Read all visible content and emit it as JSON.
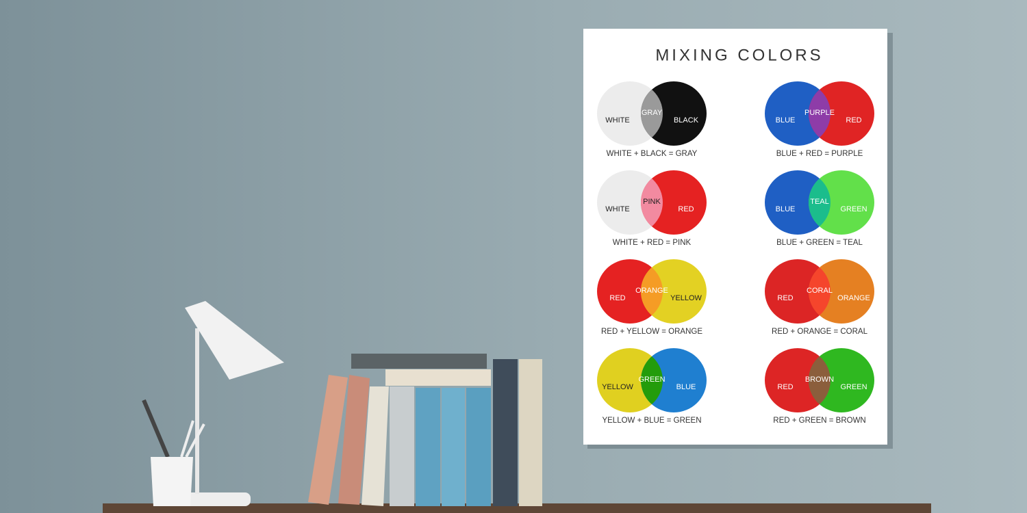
{
  "poster": {
    "title": "MIXING COLORS",
    "mixes": [
      {
        "left": "WHITE",
        "middle": "GRAY",
        "right": "BLACK",
        "caption": "WHITE + BLACK = GRAY",
        "colors": [
          "#ececec",
          "#9a9a9a",
          "#111111"
        ]
      },
      {
        "left": "BLUE",
        "middle": "PURPLE",
        "right": "RED",
        "caption": "BLUE + RED = PURPLE",
        "colors": [
          "#1f5fc4",
          "#8e3ca8",
          "#e02424"
        ]
      },
      {
        "left": "WHITE",
        "middle": "PINK",
        "right": "RED",
        "caption": "WHITE + RED = PINK",
        "colors": [
          "#ececec",
          "#f28aa0",
          "#e52222"
        ]
      },
      {
        "left": "BLUE",
        "middle": "TEAL",
        "right": "GREEN",
        "caption": "BLUE + GREEN = TEAL",
        "colors": [
          "#1f5fc4",
          "#1bbd8c",
          "#62e04a"
        ]
      },
      {
        "left": "RED",
        "middle": "ORANGE",
        "right": "YELLOW",
        "caption": "RED + YELLOW = ORANGE",
        "colors": [
          "#e52222",
          "#f59c25",
          "#e3d123"
        ]
      },
      {
        "left": "RED",
        "middle": "CORAL",
        "right": "ORANGE",
        "caption": "RED + ORANGE = CORAL",
        "colors": [
          "#dc2525",
          "#f5452c",
          "#e58022"
        ]
      },
      {
        "left": "YELLOW",
        "middle": "GREEN",
        "right": "BLUE",
        "caption": "YELLOW + BLUE = GREEN",
        "colors": [
          "#e0d020",
          "#239c0b",
          "#1f7fd0"
        ]
      },
      {
        "left": "RED",
        "middle": "BROWN",
        "right": "GREEN",
        "caption": "RED + GREEN = BROWN",
        "colors": [
          "#dd2525",
          "#8b5e3c",
          "#2fb820"
        ]
      }
    ]
  }
}
